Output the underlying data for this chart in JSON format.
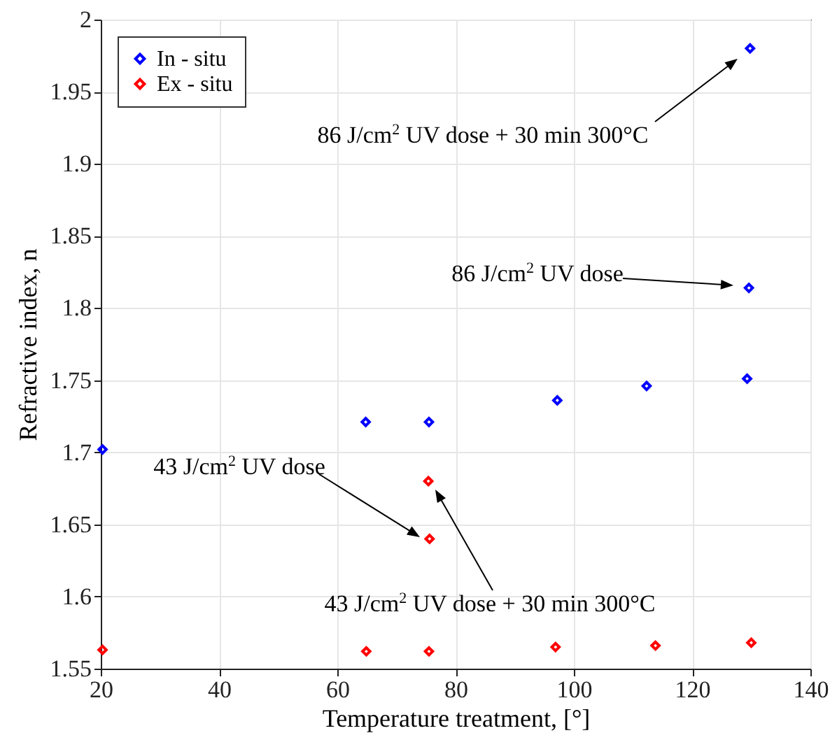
{
  "chart_data": {
    "type": "scatter",
    "xlabel": "Temperature treatment, [°]",
    "ylabel": "Refractive index, n",
    "xlim": [
      20,
      140
    ],
    "xticks": [
      20,
      40,
      60,
      80,
      100,
      120,
      140
    ],
    "ylim": [
      1.55,
      2
    ],
    "yticks": [
      1.55,
      1.6,
      1.65,
      1.7,
      1.75,
      1.8,
      1.85,
      1.9,
      1.95,
      2
    ],
    "grid": true,
    "legend": "top left",
    "marker": "diamond",
    "series": [
      {
        "name": "In - situ",
        "color": "#0000ff",
        "x": [
          20.3,
          64.8,
          75.5,
          97.2,
          112.3,
          129.3,
          129.6,
          129.8
        ],
        "values": [
          1.702,
          1.721,
          1.721,
          1.736,
          1.746,
          1.751,
          1.814,
          1.98
        ]
      },
      {
        "name": "Ex - situ",
        "color": "#ff0000",
        "x": [
          20.3,
          64.9,
          75.5,
          96.9,
          113.8,
          130,
          75.4,
          75.6
        ],
        "values": [
          1.563,
          1.562,
          1.562,
          1.565,
          1.566,
          1.568,
          1.68,
          1.64
        ]
      }
    ],
    "annotations": [
      "86 J/cm$^{2}$ UV dose + 30 min 300°C",
      "86 J/cm$^{2}$ UV dose",
      "43 J/cm$^{2}$ UV dose",
      "43 J/cm$^{2}$ UV dose + 30 min 300°C"
    ]
  }
}
